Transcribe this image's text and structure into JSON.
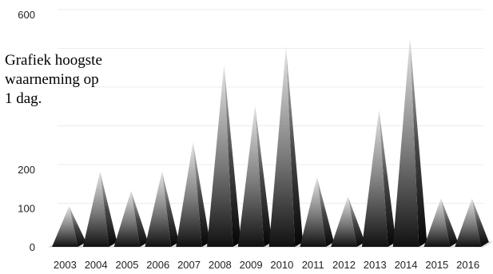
{
  "chart_data": {
    "type": "bar",
    "title_lines": [
      "Grafiek hoogste",
      "waarneming op",
      "1 dag."
    ],
    "categories": [
      "2003",
      "2004",
      "2005",
      "2006",
      "2007",
      "2008",
      "2009",
      "2010",
      "2011",
      "2012",
      "2013",
      "2014",
      "2015",
      "2016"
    ],
    "values": [
      105,
      195,
      145,
      195,
      270,
      470,
      365,
      515,
      180,
      130,
      355,
      540,
      125,
      125
    ],
    "ylim": [
      0,
      600
    ],
    "y_tick_labels": [
      {
        "value": 0,
        "label": "0"
      },
      {
        "value": 100,
        "label": "100"
      },
      {
        "value": 200,
        "label": "200"
      },
      {
        "value": 600,
        "label": "600"
      }
    ],
    "gridlines": true,
    "style": "3d-pyramid"
  }
}
